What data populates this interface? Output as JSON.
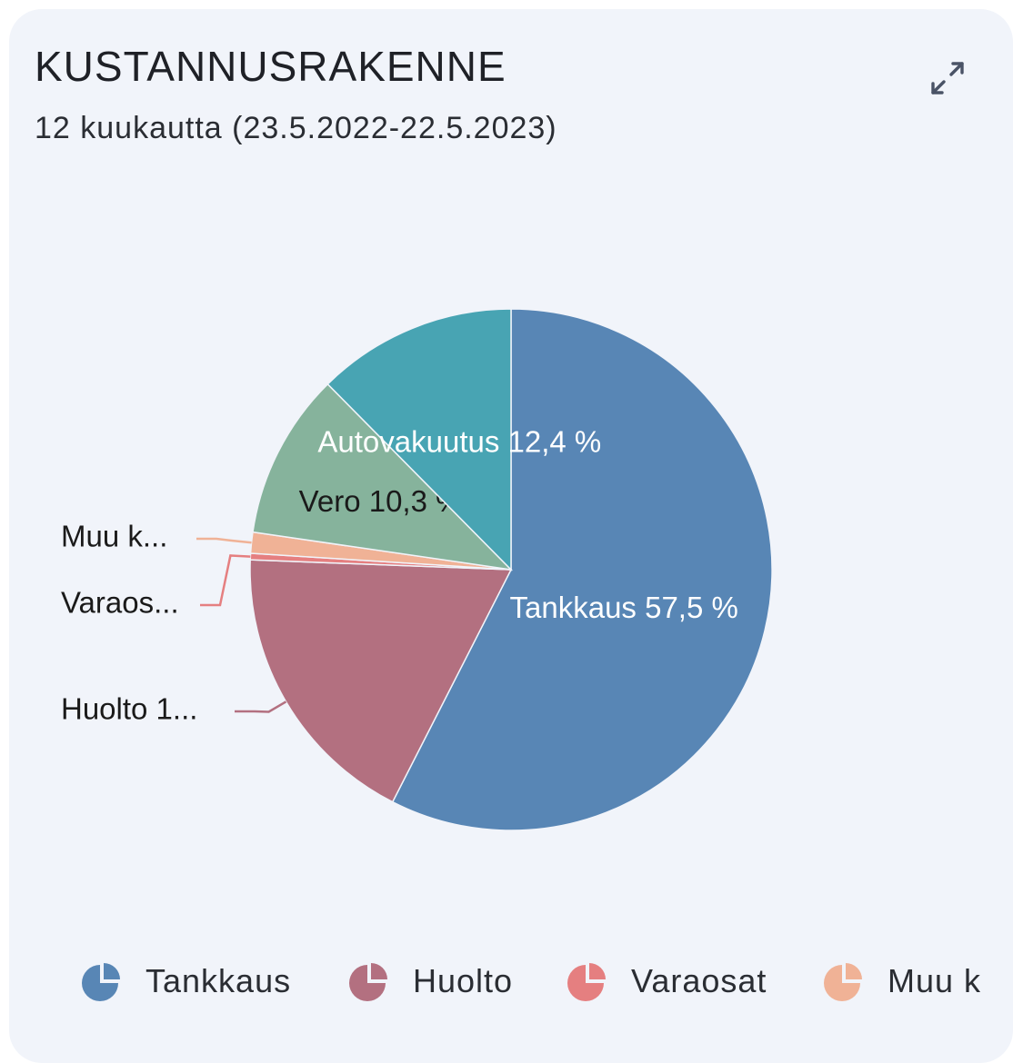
{
  "header": {
    "title": "KUSTANNUSRAKENNE",
    "subtitle": "12 kuukautta (23.5.2022-22.5.2023)",
    "expand_icon": "expand-arrows-icon"
  },
  "chart_data": {
    "type": "pie",
    "start_at": "top",
    "direction": "clockwise",
    "slices": [
      {
        "name": "Tankkaus",
        "value": 57.5,
        "label": "Tankkaus 57,5 %",
        "color": "#5886b5",
        "label_color": "#ffffff",
        "label_mode": "inside"
      },
      {
        "name": "Huolto",
        "value": 18.1,
        "label": "Huolto 1...",
        "color": "#b37080",
        "label_color": "#1a1a1a",
        "label_mode": "outside"
      },
      {
        "name": "Varaosat",
        "value": 0.4,
        "label": "Varaos...",
        "color": "#e57f80",
        "label_color": "#1a1a1a",
        "label_mode": "outside"
      },
      {
        "name": "Muu k",
        "value": 1.3,
        "label": "Muu k...",
        "color": "#f0b296",
        "label_color": "#1a1a1a",
        "label_mode": "outside"
      },
      {
        "name": "Vero",
        "value": 10.3,
        "label": "Vero 10,3 %",
        "color": "#86b39c",
        "label_color": "#1a1a1a",
        "label_mode": "inside"
      },
      {
        "name": "Autovakuutus",
        "value": 12.4,
        "label": "Autovakuutus 12,4 %",
        "color": "#48a4b3",
        "label_color": "#ffffff",
        "label_mode": "inside"
      }
    ],
    "legend": {
      "position": "bottom",
      "items": [
        {
          "label": "Tankkaus",
          "color": "#5886b5"
        },
        {
          "label": "Huolto",
          "color": "#b37080"
        },
        {
          "label": "Varaosat",
          "color": "#e57f80"
        },
        {
          "label": "Muu k",
          "color": "#f0b296"
        }
      ]
    }
  }
}
